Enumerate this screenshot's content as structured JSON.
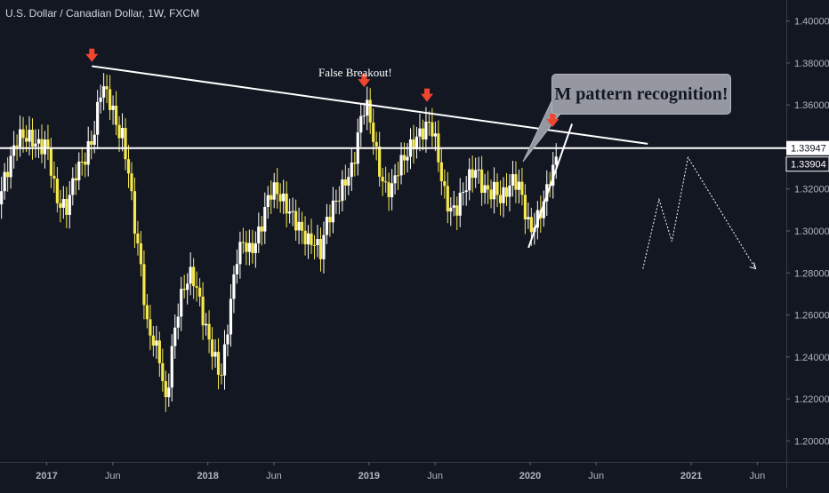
{
  "header": {
    "title": "U.S. Dollar / Canadian Dollar, 1W, FXCM"
  },
  "annotations": {
    "false_breakout": "False Breakout!",
    "callout": "M pattern recognition!"
  },
  "colors": {
    "background": "#131722",
    "candle_up": "#ffffff",
    "candle_down": "#f5e84c",
    "trendline": "#ffffff",
    "arrow": "#f0452f",
    "axis_text": "#b2b5be",
    "callout_bg": "#9598a1"
  },
  "chart_data": {
    "type": "candlestick",
    "instrument": "U.S. Dollar / Canadian Dollar",
    "interval": "1W",
    "source": "FXCM",
    "ylim": [
      1.19,
      1.41
    ],
    "y_ticks": [
      "1.40000",
      "1.38000",
      "1.36000",
      "1.34000",
      "1.32000",
      "1.30000",
      "1.28000",
      "1.26000",
      "1.24000",
      "1.22000",
      "1.20000"
    ],
    "x_ticks": [
      "2017",
      "Jun",
      "2018",
      "Jun",
      "2019",
      "Jun",
      "2020",
      "Jun",
      "2021",
      "Jun"
    ],
    "price_labels": [
      {
        "text": "1.33947",
        "value": 1.33947,
        "style": "white"
      },
      {
        "text": "1.33904",
        "value": 1.33904,
        "style": "dark"
      }
    ],
    "horizontal_line": 1.33947,
    "closes": [
      [
        2016.7,
        1.315
      ],
      [
        2016.76,
        1.33
      ],
      [
        2016.82,
        1.345
      ],
      [
        2016.88,
        1.345
      ],
      [
        2016.96,
        1.34
      ],
      [
        2017.0,
        1.342
      ],
      [
        2017.06,
        1.315
      ],
      [
        2017.12,
        1.31
      ],
      [
        2017.18,
        1.328
      ],
      [
        2017.24,
        1.335
      ],
      [
        2017.3,
        1.348
      ],
      [
        2017.33,
        1.367
      ],
      [
        2017.36,
        1.368
      ],
      [
        2017.4,
        1.36
      ],
      [
        2017.44,
        1.348
      ],
      [
        2017.47,
        1.345
      ],
      [
        2017.51,
        1.327
      ],
      [
        2017.55,
        1.3
      ],
      [
        2017.59,
        1.28
      ],
      [
        2017.62,
        1.255
      ],
      [
        2017.66,
        1.248
      ],
      [
        2017.7,
        1.24
      ],
      [
        2017.72,
        1.228
      ],
      [
        2017.74,
        1.217
      ],
      [
        2017.78,
        1.245
      ],
      [
        2017.82,
        1.265
      ],
      [
        2017.86,
        1.275
      ],
      [
        2017.9,
        1.28
      ],
      [
        2017.94,
        1.27
      ],
      [
        2017.98,
        1.255
      ],
      [
        2018.04,
        1.24
      ],
      [
        2018.08,
        1.23
      ],
      [
        2018.1,
        1.24
      ],
      [
        2018.14,
        1.265
      ],
      [
        2018.18,
        1.288
      ],
      [
        2018.22,
        1.295
      ],
      [
        2018.26,
        1.29
      ],
      [
        2018.3,
        1.295
      ],
      [
        2018.34,
        1.305
      ],
      [
        2018.38,
        1.318
      ],
      [
        2018.42,
        1.32
      ],
      [
        2018.46,
        1.315
      ],
      [
        2018.5,
        1.31
      ],
      [
        2018.54,
        1.305
      ],
      [
        2018.58,
        1.3
      ],
      [
        2018.62,
        1.295
      ],
      [
        2018.66,
        1.295
      ],
      [
        2018.7,
        1.29
      ],
      [
        2018.74,
        1.305
      ],
      [
        2018.78,
        1.312
      ],
      [
        2018.82,
        1.318
      ],
      [
        2018.86,
        1.325
      ],
      [
        2018.9,
        1.33
      ],
      [
        2018.94,
        1.35
      ],
      [
        2018.98,
        1.362
      ],
      [
        2019.02,
        1.348
      ],
      [
        2019.06,
        1.33
      ],
      [
        2019.1,
        1.32
      ],
      [
        2019.14,
        1.32
      ],
      [
        2019.18,
        1.33
      ],
      [
        2019.22,
        1.335
      ],
      [
        2019.26,
        1.34
      ],
      [
        2019.3,
        1.345
      ],
      [
        2019.34,
        1.348
      ],
      [
        2019.38,
        1.352
      ],
      [
        2019.42,
        1.34
      ],
      [
        2019.46,
        1.32
      ],
      [
        2019.5,
        1.31
      ],
      [
        2019.54,
        1.31
      ],
      [
        2019.58,
        1.318
      ],
      [
        2019.62,
        1.325
      ],
      [
        2019.66,
        1.33
      ],
      [
        2019.7,
        1.322
      ],
      [
        2019.74,
        1.318
      ],
      [
        2019.78,
        1.32
      ],
      [
        2019.82,
        1.315
      ],
      [
        2019.86,
        1.32
      ],
      [
        2019.9,
        1.325
      ],
      [
        2019.94,
        1.32
      ],
      [
        2019.98,
        1.305
      ],
      [
        2020.0,
        1.3
      ],
      [
        2020.04,
        1.305
      ],
      [
        2020.08,
        1.312
      ],
      [
        2020.12,
        1.325
      ],
      [
        2020.15,
        1.33
      ],
      [
        2020.17,
        1.339
      ]
    ],
    "projection": [
      [
        2020.7,
        1.282
      ],
      [
        2020.8,
        1.315
      ],
      [
        2020.88,
        1.295
      ],
      [
        2020.98,
        1.335
      ],
      [
        2021.4,
        1.282
      ]
    ],
    "trendline_descending": [
      [
        2017.28,
        1.3785
      ],
      [
        2020.73,
        1.3415
      ]
    ],
    "trendline_ascending": [
      [
        2019.99,
        1.292
      ],
      [
        2020.26,
        1.351
      ]
    ],
    "arrow_markers": [
      [
        2017.28,
        1.3805
      ],
      [
        2018.97,
        1.3685
      ],
      [
        2019.36,
        1.3615
      ],
      [
        2020.14,
        1.3495
      ]
    ]
  }
}
